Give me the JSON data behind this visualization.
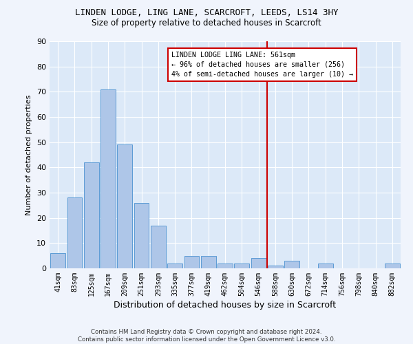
{
  "title1": "LINDEN LODGE, LING LANE, SCARCROFT, LEEDS, LS14 3HY",
  "title2": "Size of property relative to detached houses in Scarcroft",
  "xlabel": "Distribution of detached houses by size in Scarcroft",
  "ylabel": "Number of detached properties",
  "footer1": "Contains HM Land Registry data © Crown copyright and database right 2024.",
  "footer2": "Contains public sector information licensed under the Open Government Licence v3.0.",
  "categories": [
    "41sqm",
    "83sqm",
    "125sqm",
    "167sqm",
    "209sqm",
    "251sqm",
    "293sqm",
    "335sqm",
    "377sqm",
    "419sqm",
    "462sqm",
    "504sqm",
    "546sqm",
    "588sqm",
    "630sqm",
    "672sqm",
    "714sqm",
    "756sqm",
    "798sqm",
    "840sqm",
    "882sqm"
  ],
  "values": [
    6,
    28,
    42,
    71,
    49,
    26,
    17,
    2,
    5,
    5,
    2,
    2,
    4,
    1,
    3,
    0,
    2,
    0,
    0,
    0,
    2
  ],
  "bar_color": "#aec6e8",
  "bar_edge_color": "#5b9bd5",
  "bg_color": "#dce9f8",
  "fig_color": "#f0f4fc",
  "grid_color": "#ffffff",
  "vline_color": "#cc0000",
  "annotation_box_text": "LINDEN LODGE LING LANE: 561sqm\n← 96% of detached houses are smaller (256)\n4% of semi-detached houses are larger (10) →",
  "annotation_box_color": "#cc0000",
  "ylim": [
    0,
    90
  ],
  "yticks": [
    0,
    10,
    20,
    30,
    40,
    50,
    60,
    70,
    80,
    90
  ]
}
